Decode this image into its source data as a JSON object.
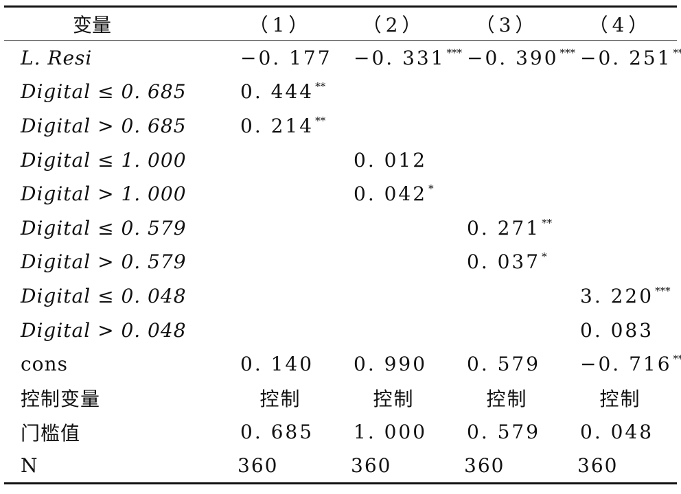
{
  "header": {
    "variable": "变量",
    "columns": [
      "（1）",
      "（2）",
      "（3）",
      "（4）"
    ]
  },
  "rows": [
    {
      "label": "L. Resi",
      "italic": true,
      "cells": [
        {
          "value": "−0. 177",
          "stars": ""
        },
        {
          "value": "−0. 331",
          "stars": "***"
        },
        {
          "value": "−0. 390",
          "stars": "***"
        },
        {
          "value": "−0. 251",
          "stars": "***"
        }
      ]
    },
    {
      "label": "Digital ≤ 0. 685",
      "italic": true,
      "cells": [
        {
          "value": "0. 444",
          "stars": "**"
        },
        {
          "value": "",
          "stars": ""
        },
        {
          "value": "",
          "stars": ""
        },
        {
          "value": "",
          "stars": ""
        }
      ]
    },
    {
      "label": "Digital > 0. 685",
      "italic": true,
      "cells": [
        {
          "value": "0. 214",
          "stars": "**"
        },
        {
          "value": "",
          "stars": ""
        },
        {
          "value": "",
          "stars": ""
        },
        {
          "value": "",
          "stars": ""
        }
      ]
    },
    {
      "label": "Digital ≤ 1. 000",
      "italic": true,
      "cells": [
        {
          "value": "",
          "stars": ""
        },
        {
          "value": "0. 012",
          "stars": ""
        },
        {
          "value": "",
          "stars": ""
        },
        {
          "value": "",
          "stars": ""
        }
      ]
    },
    {
      "label": "Digital > 1. 000",
      "italic": true,
      "cells": [
        {
          "value": "",
          "stars": ""
        },
        {
          "value": "0. 042",
          "stars": "*"
        },
        {
          "value": "",
          "stars": ""
        },
        {
          "value": "",
          "stars": ""
        }
      ]
    },
    {
      "label": "Digital ≤ 0. 579",
      "italic": true,
      "cells": [
        {
          "value": "",
          "stars": ""
        },
        {
          "value": "",
          "stars": ""
        },
        {
          "value": "0. 271",
          "stars": "**"
        },
        {
          "value": "",
          "stars": ""
        }
      ]
    },
    {
      "label": "Digital > 0. 579",
      "italic": true,
      "cells": [
        {
          "value": "",
          "stars": ""
        },
        {
          "value": "",
          "stars": ""
        },
        {
          "value": "0. 037",
          "stars": "*"
        },
        {
          "value": "",
          "stars": ""
        }
      ]
    },
    {
      "label": "Digital ≤ 0. 048",
      "italic": true,
      "cells": [
        {
          "value": "",
          "stars": ""
        },
        {
          "value": "",
          "stars": ""
        },
        {
          "value": "",
          "stars": ""
        },
        {
          "value": "3. 220",
          "stars": "***"
        }
      ]
    },
    {
      "label": "Digital > 0. 048",
      "italic": true,
      "cells": [
        {
          "value": "",
          "stars": ""
        },
        {
          "value": "",
          "stars": ""
        },
        {
          "value": "",
          "stars": ""
        },
        {
          "value": "0. 083",
          "stars": ""
        }
      ]
    },
    {
      "label": "cons",
      "italic": false,
      "cells": [
        {
          "value": "0. 140",
          "stars": ""
        },
        {
          "value": "0. 990",
          "stars": ""
        },
        {
          "value": "0. 579",
          "stars": ""
        },
        {
          "value": "−0. 716",
          "stars": "**"
        }
      ]
    }
  ],
  "controls": {
    "label": "控制变量",
    "values": [
      "控制",
      "控制",
      "控制",
      "控制"
    ]
  },
  "threshold": {
    "label": "门槛值",
    "values": [
      "0. 685",
      "1. 000",
      "0. 579",
      "0. 048"
    ]
  },
  "n": {
    "label": "N",
    "values": [
      "360",
      "360",
      "360",
      "360"
    ]
  }
}
